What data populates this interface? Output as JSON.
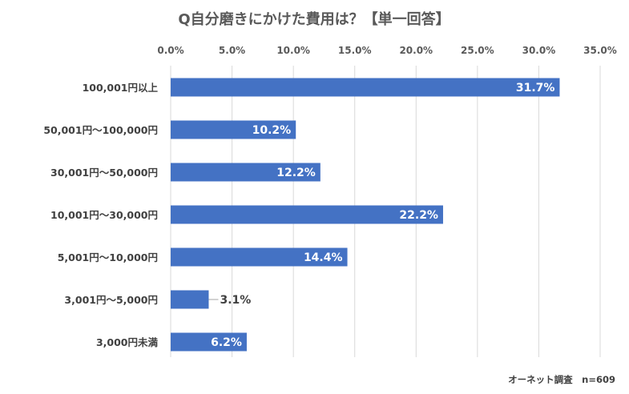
{
  "chart_data": {
    "type": "bar",
    "orientation": "horizontal",
    "title": "Q自分磨きにかけた費用は？【単一回答】",
    "categories": [
      "100,001円以上",
      "50,001円～100,000円",
      "30,001円～50,000円",
      "10,001円～30,000円",
      "5,001円～10,000円",
      "3,001円～5,000円",
      "3,000円未満"
    ],
    "values": [
      31.7,
      10.2,
      12.2,
      22.2,
      14.4,
      3.1,
      6.2
    ],
    "data_labels": [
      "31.7%",
      "10.2%",
      "12.2%",
      "22.2%",
      "14.4%",
      "3.1%",
      "6.2%"
    ],
    "xlim": [
      0,
      35
    ],
    "x_ticks": [
      0,
      5,
      10,
      15,
      20,
      25,
      30,
      35
    ],
    "x_tick_labels": [
      "0.0%",
      "5.0%",
      "10.0%",
      "15.0%",
      "20.0%",
      "25.0%",
      "30.0%",
      "35.0%"
    ],
    "x_axis_position": "top",
    "grid": true,
    "legend": "none",
    "source_note": "オーネット調査　n=609",
    "colors": {
      "bar": "#4472C4",
      "grid": "#D9D9D9",
      "text": "#595959"
    }
  }
}
